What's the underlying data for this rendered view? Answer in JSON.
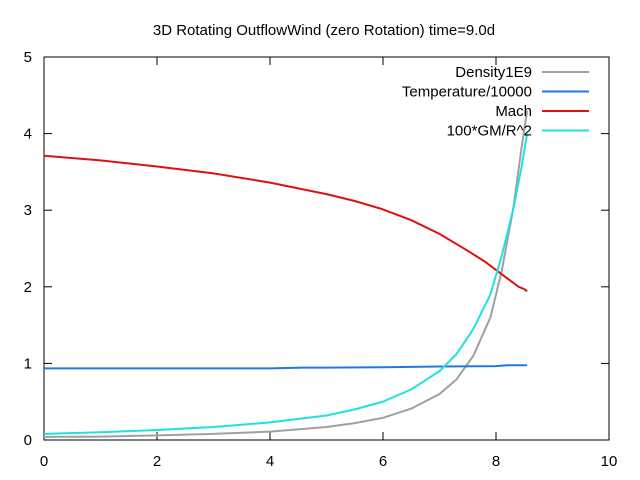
{
  "chart_data": {
    "type": "line",
    "title": "3D Rotating OutflowWind (zero Rotation) time=9.0d",
    "xlabel": "",
    "ylabel": "",
    "xlim": [
      0,
      10
    ],
    "ylim": [
      0,
      5
    ],
    "x_ticks": [
      0,
      2,
      4,
      6,
      8,
      10
    ],
    "y_ticks": [
      0,
      1,
      2,
      3,
      4,
      5
    ],
    "x_tick_labels": [
      "0",
      "2",
      "4",
      "6",
      "8",
      "10"
    ],
    "y_tick_labels": [
      "0",
      "1",
      "2",
      "3",
      "4",
      "5"
    ],
    "grid": false,
    "legend_position": "top-right",
    "series": [
      {
        "name": "Density1E9",
        "color": "#a0a0a0",
        "x": [
          0,
          1,
          2,
          3,
          4,
          5,
          5.5,
          6,
          6.5,
          7,
          7.3,
          7.6,
          7.9,
          8.1,
          8.3,
          8.45,
          8.55
        ],
        "y": [
          0.04,
          0.045,
          0.06,
          0.08,
          0.11,
          0.17,
          0.22,
          0.29,
          0.41,
          0.6,
          0.79,
          1.1,
          1.6,
          2.2,
          3.0,
          3.8,
          4.3
        ]
      },
      {
        "name": "Temperature/10000",
        "color": "#1e7ae0",
        "x": [
          0,
          1,
          2,
          3,
          4,
          4.6,
          5,
          6,
          7,
          8,
          8.2,
          8.55
        ],
        "y": [
          0.935,
          0.935,
          0.935,
          0.935,
          0.935,
          0.945,
          0.945,
          0.95,
          0.96,
          0.965,
          0.975,
          0.975
        ]
      },
      {
        "name": "Mach",
        "color": "#dd1111",
        "x": [
          0,
          1,
          2,
          3,
          4,
          5,
          5.5,
          6,
          6.5,
          7,
          7.5,
          7.8,
          8.0,
          8.2,
          8.4,
          8.5,
          8.55
        ],
        "y": [
          3.71,
          3.65,
          3.57,
          3.48,
          3.36,
          3.21,
          3.12,
          3.01,
          2.87,
          2.69,
          2.47,
          2.33,
          2.22,
          2.11,
          2.0,
          1.97,
          1.94
        ]
      },
      {
        "name": "100*GM/R^2",
        "color": "#22e0e0",
        "x": [
          0,
          1,
          2,
          3,
          4,
          5,
          5.5,
          6,
          6.5,
          7,
          7.3,
          7.6,
          7.9,
          8.1,
          8.3,
          8.45,
          8.55
        ],
        "y": [
          0.08,
          0.1,
          0.13,
          0.17,
          0.23,
          0.32,
          0.4,
          0.5,
          0.66,
          0.9,
          1.12,
          1.45,
          1.9,
          2.4,
          3.0,
          3.55,
          4.0
        ]
      }
    ]
  }
}
